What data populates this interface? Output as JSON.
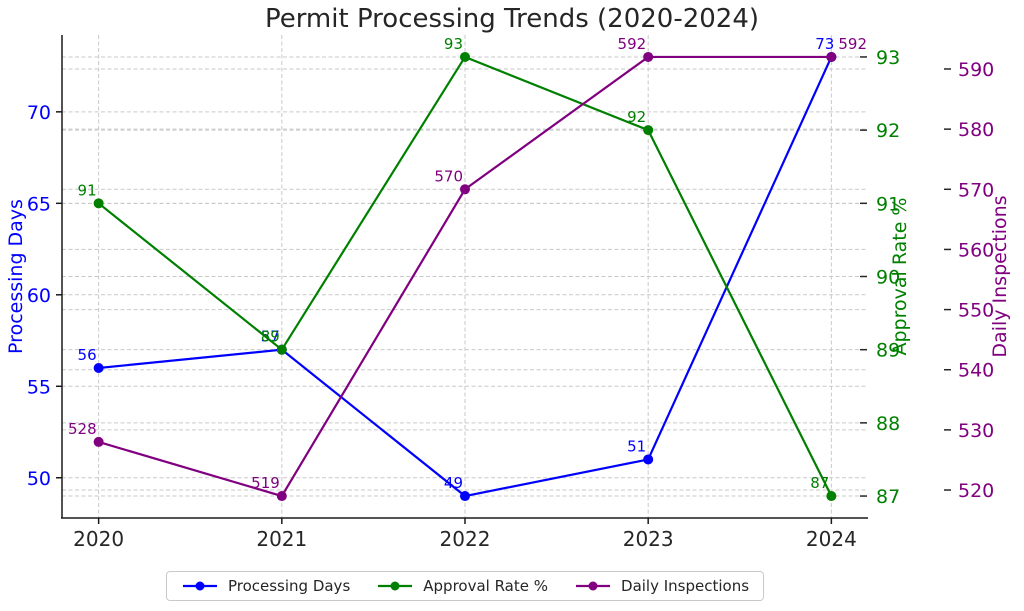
{
  "title": "Permit Processing Trends (2020-2024)",
  "chart_data": {
    "type": "line",
    "title": "Permit Processing Trends (2020-2024)",
    "x_values": [
      2020,
      2021,
      2022,
      2023,
      2024
    ],
    "x_tick_labels": [
      "2020",
      "2021",
      "2022",
      "2023",
      "2024"
    ],
    "x_range": [
      2019.8,
      2024.2
    ],
    "series": [
      {
        "name": "Processing Days",
        "axis": "left",
        "color": "#0000ff",
        "marker": "circle",
        "values": [
          56,
          57,
          49,
          51,
          73
        ],
        "point_labels": [
          "56",
          "57",
          "49",
          "51",
          "73"
        ]
      },
      {
        "name": "Approval Rate %",
        "axis": "right_inner",
        "color": "#008000",
        "marker": "circle",
        "values": [
          91,
          89,
          93,
          92,
          87
        ],
        "point_labels": [
          "91",
          "89",
          "93",
          "92",
          "87"
        ]
      },
      {
        "name": "Daily Inspections",
        "axis": "right_outer",
        "color": "#800080",
        "marker": "circle",
        "values": [
          528,
          519,
          570,
          592,
          592
        ],
        "point_labels": [
          "528",
          "519",
          "570",
          "592",
          "592"
        ]
      }
    ],
    "axes": {
      "left": {
        "label": "Processing Days",
        "color": "#0000ff",
        "ticks": [
          50,
          55,
          60,
          65,
          70
        ],
        "range": [
          47.8,
          74.2
        ]
      },
      "right_inner": {
        "label": "Approval Rate %",
        "color": "#008000",
        "ticks": [
          87,
          88,
          89,
          90,
          91,
          92,
          93
        ],
        "range": [
          86.7,
          93.3
        ]
      },
      "right_outer": {
        "label": "Daily Inspections",
        "color": "#800080",
        "ticks": [
          520,
          530,
          540,
          550,
          560,
          570,
          580,
          590
        ],
        "range": [
          515.35,
          595.65
        ]
      }
    },
    "grid": true,
    "legend": {
      "position": "bottom-center",
      "labels": [
        "Processing Days",
        "Approval Rate %",
        "Daily Inspections"
      ]
    },
    "text_color": "#262626",
    "grid_color": "#c9c9c9",
    "spine_color": "#1a1a1a"
  }
}
